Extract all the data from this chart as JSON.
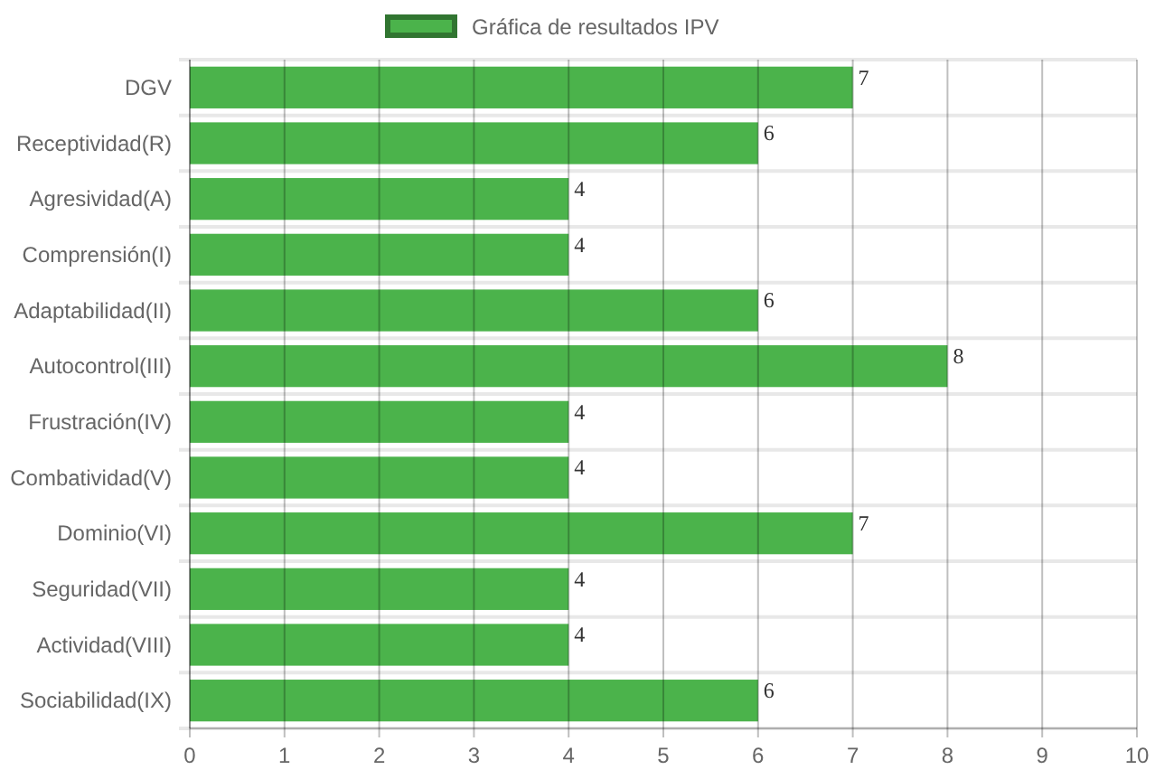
{
  "chart_data": {
    "type": "bar",
    "orientation": "horizontal",
    "categories": [
      "DGV",
      "Receptividad(R)",
      "Agresividad(A)",
      "Comprensión(I)",
      "Adaptabilidad(II)",
      "Autocontrol(III)",
      "Frustración(IV)",
      "Combatividad(V)",
      "Dominio(VI)",
      "Seguridad(VII)",
      "Actividad(VIII)",
      "Sociabilidad(IX)"
    ],
    "series": [
      {
        "name": "Gráfica de resultados IPV",
        "color": "#4bb34b",
        "values": [
          7,
          6,
          4,
          4,
          6,
          8,
          4,
          4,
          7,
          4,
          4,
          6
        ]
      }
    ],
    "xlim": [
      0,
      10
    ],
    "xticks": [
      0,
      1,
      2,
      3,
      4,
      5,
      6,
      7,
      8,
      9,
      10
    ],
    "grid": true,
    "legend": "top",
    "data_labels": true
  }
}
